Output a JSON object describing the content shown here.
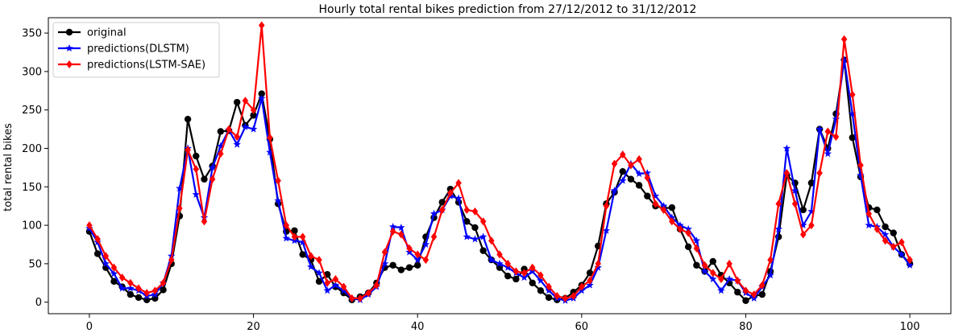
{
  "chart_data": {
    "type": "line",
    "title": "Hourly total rental bikes prediction from 27/12/2012 to 31/12/2012",
    "xlabel": "",
    "ylabel": "total rental bikes",
    "xlim": [
      -5,
      105
    ],
    "ylim": [
      -15,
      370
    ],
    "xticks": [
      0,
      20,
      40,
      60,
      80,
      100
    ],
    "yticks": [
      0,
      50,
      100,
      150,
      200,
      250,
      300,
      350
    ],
    "grid": false,
    "legend": "top-left",
    "series": [
      {
        "name": "original",
        "color": "#000000",
        "marker": "circle",
        "values": [
          92,
          63,
          45,
          27,
          20,
          10,
          6,
          3,
          5,
          16,
          50,
          112,
          238,
          190,
          160,
          177,
          222,
          223,
          260,
          230,
          243,
          271,
          212,
          128,
          92,
          93,
          62,
          55,
          27,
          36,
          20,
          12,
          3,
          7,
          12,
          25,
          45,
          48,
          42,
          45,
          48,
          85,
          110,
          130,
          147,
          130,
          105,
          97,
          67,
          55,
          45,
          34,
          30,
          43,
          25,
          15,
          6,
          3,
          5,
          13,
          22,
          38,
          73,
          128,
          143,
          170,
          160,
          152,
          138,
          125,
          122,
          123,
          95,
          72,
          48,
          40,
          53,
          35,
          25,
          13,
          2,
          8,
          10,
          40,
          85,
          165,
          155,
          120,
          155,
          225,
          200,
          245,
          315,
          214,
          163,
          123,
          120,
          98,
          90,
          62,
          50
        ],
        "x_note": "x = 0..100"
      },
      {
        "name": "predictions(DLSTM)",
        "color": "#0000ff",
        "marker": "star",
        "values": [
          96,
          78,
          50,
          37,
          18,
          18,
          15,
          8,
          10,
          25,
          60,
          148,
          200,
          140,
          110,
          175,
          203,
          224,
          205,
          228,
          225,
          265,
          195,
          132,
          83,
          80,
          78,
          46,
          38,
          15,
          22,
          15,
          5,
          3,
          10,
          20,
          50,
          98,
          97,
          65,
          55,
          75,
          115,
          120,
          138,
          135,
          85,
          82,
          85,
          55,
          50,
          45,
          38,
          32,
          40,
          28,
          15,
          5,
          2,
          5,
          15,
          22,
          45,
          93,
          145,
          158,
          180,
          167,
          168,
          138,
          125,
          110,
          100,
          95,
          80,
          40,
          30,
          15,
          30,
          28,
          12,
          5,
          20,
          35,
          95,
          200,
          145,
          100,
          118,
          225,
          193,
          238,
          315,
          245,
          165,
          100,
          98,
          88,
          72,
          62,
          48
        ]
      },
      {
        "name": "predictions(LSTM-SAE)",
        "color": "#ff0000",
        "marker": "diamond",
        "values": [
          100,
          82,
          60,
          45,
          32,
          25,
          18,
          12,
          15,
          25,
          55,
          122,
          198,
          173,
          105,
          160,
          193,
          225,
          215,
          262,
          250,
          360,
          214,
          158,
          100,
          85,
          85,
          60,
          55,
          25,
          30,
          20,
          5,
          5,
          12,
          22,
          65,
          92,
          88,
          70,
          62,
          55,
          85,
          120,
          142,
          155,
          120,
          118,
          105,
          80,
          62,
          50,
          40,
          38,
          45,
          35,
          20,
          8,
          5,
          8,
          20,
          28,
          50,
          125,
          180,
          192,
          178,
          186,
          162,
          128,
          120,
          105,
          95,
          90,
          70,
          48,
          38,
          30,
          50,
          28,
          15,
          10,
          22,
          55,
          128,
          168,
          128,
          88,
          100,
          168,
          222,
          215,
          342,
          270,
          178,
          115,
          95,
          80,
          72,
          78,
          55
        ]
      }
    ]
  }
}
